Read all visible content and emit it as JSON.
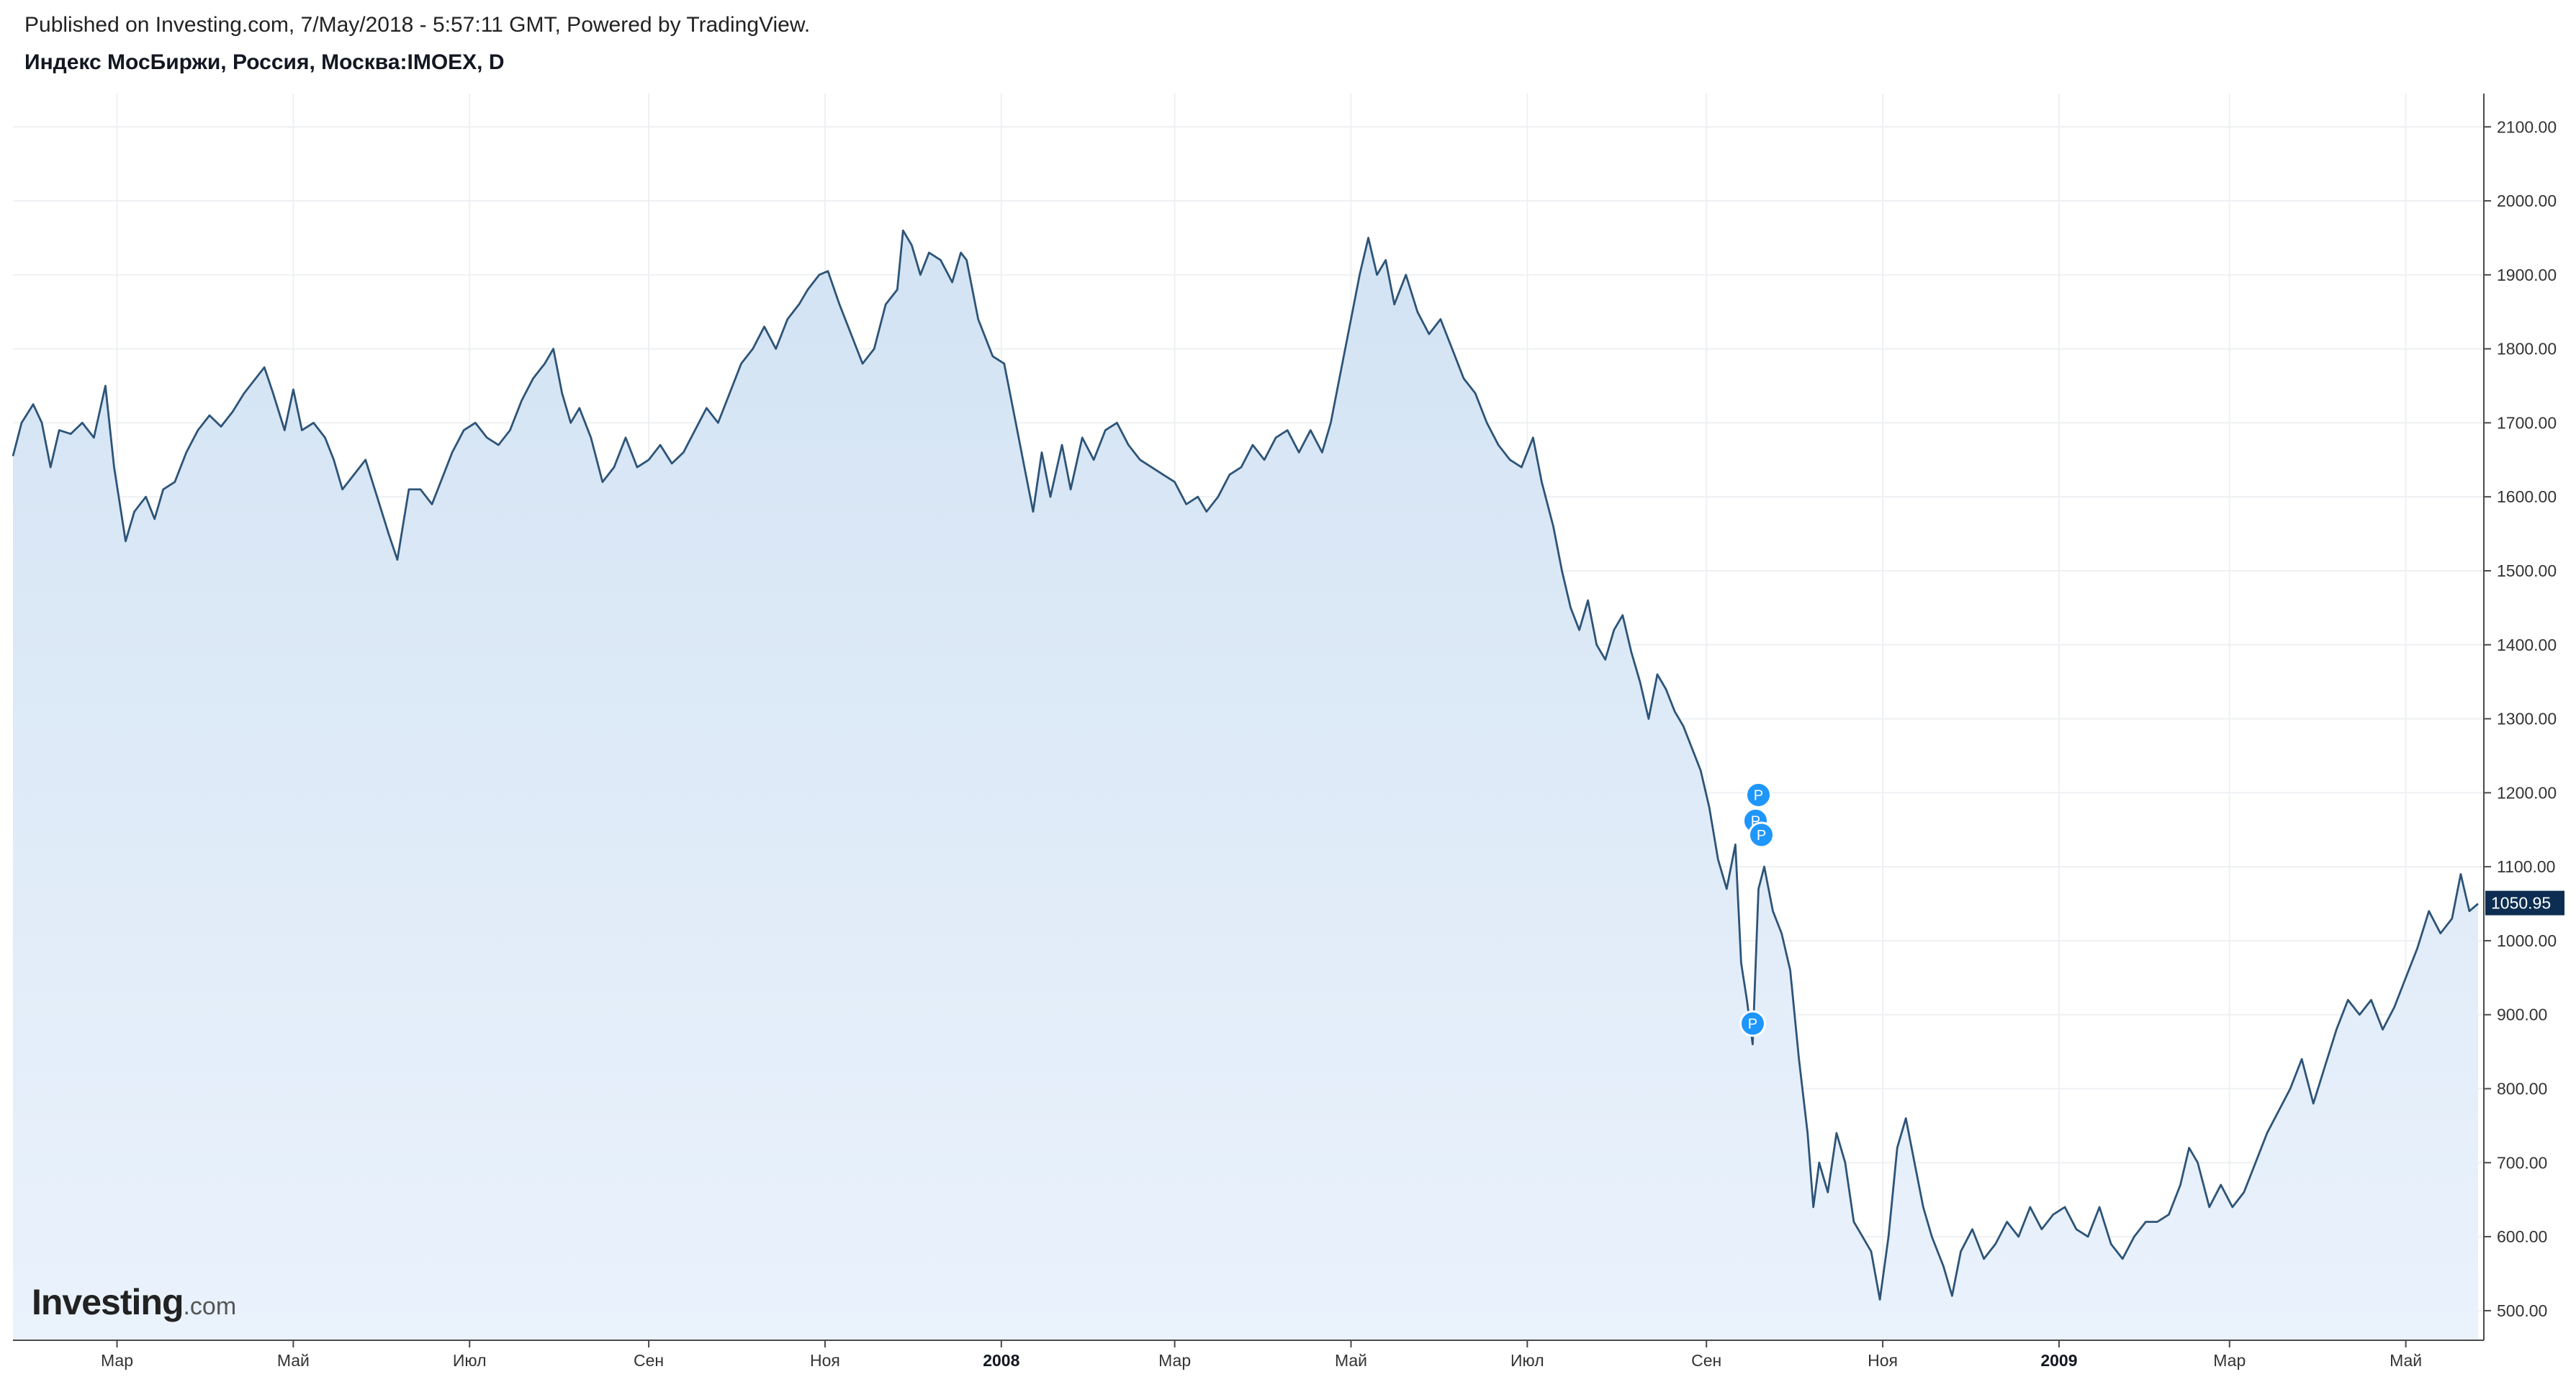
{
  "header": {
    "published": "Published on Investing.com, 7/May/2018 - 5:57:11 GMT, Powered by TradingView.",
    "symbol": "Индекс МосБиржи, Россия, Москва:IMOEX, D"
  },
  "logo": {
    "main": "Investing",
    "suffix": ".com"
  },
  "colors": {
    "line": "#2d5478",
    "area_top": "#d3e3f3",
    "area_bottom": "#eaf2fc",
    "last_price_bg": "#0d2e52",
    "marker": "#1e96fc"
  },
  "chart_data": {
    "type": "area",
    "ylim": [
      460,
      2145
    ],
    "y_ticks": [
      "500.00",
      "600.00",
      "700.00",
      "800.00",
      "900.00",
      "1000.00",
      "1100.00",
      "1200.00",
      "1300.00",
      "1400.00",
      "1500.00",
      "1600.00",
      "1700.00",
      "1800.00",
      "1900.00",
      "2000.00",
      "2100.00"
    ],
    "x_range": [
      "2007-01-24",
      "2009-05-28"
    ],
    "x_ticks": [
      {
        "date": "2007-03-01",
        "label": "Мар",
        "bold": false
      },
      {
        "date": "2007-05-01",
        "label": "Май",
        "bold": false
      },
      {
        "date": "2007-07-01",
        "label": "Июл",
        "bold": false
      },
      {
        "date": "2007-09-01",
        "label": "Сен",
        "bold": false
      },
      {
        "date": "2007-11-01",
        "label": "Ноя",
        "bold": false
      },
      {
        "date": "2008-01-01",
        "label": "2008",
        "bold": true
      },
      {
        "date": "2008-03-01",
        "label": "Мар",
        "bold": false
      },
      {
        "date": "2008-05-01",
        "label": "Май",
        "bold": false
      },
      {
        "date": "2008-07-01",
        "label": "Июл",
        "bold": false
      },
      {
        "date": "2008-09-01",
        "label": "Сен",
        "bold": false
      },
      {
        "date": "2008-11-01",
        "label": "Ноя",
        "bold": false
      },
      {
        "date": "2009-01-01",
        "label": "2009",
        "bold": true
      },
      {
        "date": "2009-03-01",
        "label": "Мар",
        "bold": false
      },
      {
        "date": "2009-05-01",
        "label": "Май",
        "bold": false
      }
    ],
    "grid": true,
    "last_price": "1050.95",
    "markers": [
      {
        "date": "2008-09-19",
        "value": 1197,
        "label": "P"
      },
      {
        "date": "2008-09-18",
        "value": 1162,
        "label": "P"
      },
      {
        "date": "2008-09-20",
        "value": 1143,
        "label": "P"
      },
      {
        "date": "2008-09-17",
        "value": 888,
        "label": "P"
      }
    ],
    "series": [
      {
        "points": [
          [
            "2007-01-24",
            1655
          ],
          [
            "2007-01-27",
            1700
          ],
          [
            "2007-01-31",
            1725
          ],
          [
            "2007-02-03",
            1700
          ],
          [
            "2007-02-06",
            1640
          ],
          [
            "2007-02-09",
            1690
          ],
          [
            "2007-02-13",
            1685
          ],
          [
            "2007-02-17",
            1700
          ],
          [
            "2007-02-21",
            1680
          ],
          [
            "2007-02-25",
            1750
          ],
          [
            "2007-02-28",
            1640
          ],
          [
            "2007-03-02",
            1590
          ],
          [
            "2007-03-04",
            1540
          ],
          [
            "2007-03-07",
            1580
          ],
          [
            "2007-03-11",
            1600
          ],
          [
            "2007-03-14",
            1570
          ],
          [
            "2007-03-17",
            1610
          ],
          [
            "2007-03-21",
            1620
          ],
          [
            "2007-03-25",
            1660
          ],
          [
            "2007-03-29",
            1690
          ],
          [
            "2007-04-02",
            1710
          ],
          [
            "2007-04-06",
            1695
          ],
          [
            "2007-04-10",
            1715
          ],
          [
            "2007-04-14",
            1740
          ],
          [
            "2007-04-18",
            1760
          ],
          [
            "2007-04-21",
            1775
          ],
          [
            "2007-04-24",
            1740
          ],
          [
            "2007-04-28",
            1690
          ],
          [
            "2007-05-01",
            1745
          ],
          [
            "2007-05-04",
            1690
          ],
          [
            "2007-05-08",
            1700
          ],
          [
            "2007-05-12",
            1680
          ],
          [
            "2007-05-15",
            1650
          ],
          [
            "2007-05-18",
            1610
          ],
          [
            "2007-05-22",
            1630
          ],
          [
            "2007-05-26",
            1650
          ],
          [
            "2007-05-30",
            1600
          ],
          [
            "2007-06-03",
            1550
          ],
          [
            "2007-06-06",
            1515
          ],
          [
            "2007-06-10",
            1610
          ],
          [
            "2007-06-14",
            1610
          ],
          [
            "2007-06-18",
            1590
          ],
          [
            "2007-06-21",
            1620
          ],
          [
            "2007-06-25",
            1660
          ],
          [
            "2007-06-29",
            1690
          ],
          [
            "2007-07-03",
            1700
          ],
          [
            "2007-07-07",
            1680
          ],
          [
            "2007-07-11",
            1670
          ],
          [
            "2007-07-15",
            1690
          ],
          [
            "2007-07-19",
            1730
          ],
          [
            "2007-07-23",
            1760
          ],
          [
            "2007-07-27",
            1780
          ],
          [
            "2007-07-30",
            1800
          ],
          [
            "2007-08-02",
            1740
          ],
          [
            "2007-08-05",
            1700
          ],
          [
            "2007-08-08",
            1720
          ],
          [
            "2007-08-12",
            1680
          ],
          [
            "2007-08-16",
            1620
          ],
          [
            "2007-08-20",
            1640
          ],
          [
            "2007-08-24",
            1680
          ],
          [
            "2007-08-28",
            1640
          ],
          [
            "2007-09-01",
            1650
          ],
          [
            "2007-09-05",
            1670
          ],
          [
            "2007-09-09",
            1645
          ],
          [
            "2007-09-13",
            1660
          ],
          [
            "2007-09-17",
            1690
          ],
          [
            "2007-09-21",
            1720
          ],
          [
            "2007-09-25",
            1700
          ],
          [
            "2007-09-29",
            1740
          ],
          [
            "2007-10-03",
            1780
          ],
          [
            "2007-10-07",
            1800
          ],
          [
            "2007-10-11",
            1830
          ],
          [
            "2007-10-15",
            1800
          ],
          [
            "2007-10-19",
            1840
          ],
          [
            "2007-10-23",
            1860
          ],
          [
            "2007-10-26",
            1880
          ],
          [
            "2007-10-30",
            1900
          ],
          [
            "2007-11-02",
            1905
          ],
          [
            "2007-11-06",
            1860
          ],
          [
            "2007-11-10",
            1820
          ],
          [
            "2007-11-14",
            1780
          ],
          [
            "2007-11-18",
            1800
          ],
          [
            "2007-11-22",
            1860
          ],
          [
            "2007-11-26",
            1880
          ],
          [
            "2007-11-28",
            1960
          ],
          [
            "2007-12-01",
            1940
          ],
          [
            "2007-12-04",
            1900
          ],
          [
            "2007-12-07",
            1930
          ],
          [
            "2007-12-11",
            1920
          ],
          [
            "2007-12-15",
            1890
          ],
          [
            "2007-12-18",
            1930
          ],
          [
            "2007-12-20",
            1920
          ],
          [
            "2007-12-24",
            1840
          ],
          [
            "2007-12-29",
            1790
          ],
          [
            "2008-01-02",
            1780
          ],
          [
            "2008-01-06",
            1700
          ],
          [
            "2008-01-09",
            1640
          ],
          [
            "2008-01-12",
            1580
          ],
          [
            "2008-01-15",
            1660
          ],
          [
            "2008-01-18",
            1600
          ],
          [
            "2008-01-22",
            1670
          ],
          [
            "2008-01-25",
            1610
          ],
          [
            "2008-01-29",
            1680
          ],
          [
            "2008-02-02",
            1650
          ],
          [
            "2008-02-06",
            1690
          ],
          [
            "2008-02-10",
            1700
          ],
          [
            "2008-02-14",
            1670
          ],
          [
            "2008-02-18",
            1650
          ],
          [
            "2008-02-22",
            1640
          ],
          [
            "2008-02-26",
            1630
          ],
          [
            "2008-03-01",
            1620
          ],
          [
            "2008-03-05",
            1590
          ],
          [
            "2008-03-09",
            1600
          ],
          [
            "2008-03-12",
            1580
          ],
          [
            "2008-03-16",
            1600
          ],
          [
            "2008-03-20",
            1630
          ],
          [
            "2008-03-24",
            1640
          ],
          [
            "2008-03-28",
            1670
          ],
          [
            "2008-04-01",
            1650
          ],
          [
            "2008-04-05",
            1680
          ],
          [
            "2008-04-09",
            1690
          ],
          [
            "2008-04-13",
            1660
          ],
          [
            "2008-04-17",
            1690
          ],
          [
            "2008-04-21",
            1660
          ],
          [
            "2008-04-24",
            1700
          ],
          [
            "2008-04-27",
            1760
          ],
          [
            "2008-05-01",
            1840
          ],
          [
            "2008-05-04",
            1900
          ],
          [
            "2008-05-07",
            1950
          ],
          [
            "2008-05-10",
            1900
          ],
          [
            "2008-05-13",
            1920
          ],
          [
            "2008-05-16",
            1860
          ],
          [
            "2008-05-20",
            1900
          ],
          [
            "2008-05-24",
            1850
          ],
          [
            "2008-05-28",
            1820
          ],
          [
            "2008-06-01",
            1840
          ],
          [
            "2008-06-05",
            1800
          ],
          [
            "2008-06-09",
            1760
          ],
          [
            "2008-06-13",
            1740
          ],
          [
            "2008-06-17",
            1700
          ],
          [
            "2008-06-21",
            1670
          ],
          [
            "2008-06-25",
            1650
          ],
          [
            "2008-06-29",
            1640
          ],
          [
            "2008-07-03",
            1680
          ],
          [
            "2008-07-06",
            1620
          ],
          [
            "2008-07-10",
            1560
          ],
          [
            "2008-07-13",
            1500
          ],
          [
            "2008-07-16",
            1450
          ],
          [
            "2008-07-19",
            1420
          ],
          [
            "2008-07-22",
            1460
          ],
          [
            "2008-07-25",
            1400
          ],
          [
            "2008-07-28",
            1380
          ],
          [
            "2008-07-31",
            1420
          ],
          [
            "2008-08-03",
            1440
          ],
          [
            "2008-08-06",
            1390
          ],
          [
            "2008-08-09",
            1350
          ],
          [
            "2008-08-12",
            1300
          ],
          [
            "2008-08-15",
            1360
          ],
          [
            "2008-08-18",
            1340
          ],
          [
            "2008-08-21",
            1310
          ],
          [
            "2008-08-24",
            1290
          ],
          [
            "2008-08-27",
            1260
          ],
          [
            "2008-08-30",
            1230
          ],
          [
            "2008-09-02",
            1180
          ],
          [
            "2008-09-05",
            1110
          ],
          [
            "2008-09-08",
            1070
          ],
          [
            "2008-09-11",
            1130
          ],
          [
            "2008-09-13",
            970
          ],
          [
            "2008-09-15",
            920
          ],
          [
            "2008-09-17",
            860
          ],
          [
            "2008-09-19",
            1070
          ],
          [
            "2008-09-21",
            1100
          ],
          [
            "2008-09-24",
            1040
          ],
          [
            "2008-09-27",
            1010
          ],
          [
            "2008-09-30",
            960
          ],
          [
            "2008-10-03",
            840
          ],
          [
            "2008-10-06",
            740
          ],
          [
            "2008-10-08",
            640
          ],
          [
            "2008-10-10",
            700
          ],
          [
            "2008-10-13",
            660
          ],
          [
            "2008-10-16",
            740
          ],
          [
            "2008-10-19",
            700
          ],
          [
            "2008-10-22",
            620
          ],
          [
            "2008-10-25",
            600
          ],
          [
            "2008-10-28",
            580
          ],
          [
            "2008-10-31",
            515
          ],
          [
            "2008-11-03",
            600
          ],
          [
            "2008-11-06",
            720
          ],
          [
            "2008-11-09",
            760
          ],
          [
            "2008-11-12",
            700
          ],
          [
            "2008-11-15",
            640
          ],
          [
            "2008-11-18",
            600
          ],
          [
            "2008-11-22",
            560
          ],
          [
            "2008-11-25",
            520
          ],
          [
            "2008-11-28",
            580
          ],
          [
            "2008-12-02",
            610
          ],
          [
            "2008-12-06",
            570
          ],
          [
            "2008-12-10",
            590
          ],
          [
            "2008-12-14",
            620
          ],
          [
            "2008-12-18",
            600
          ],
          [
            "2008-12-22",
            640
          ],
          [
            "2008-12-26",
            610
          ],
          [
            "2008-12-30",
            630
          ],
          [
            "2009-01-03",
            640
          ],
          [
            "2009-01-07",
            610
          ],
          [
            "2009-01-11",
            600
          ],
          [
            "2009-01-15",
            640
          ],
          [
            "2009-01-19",
            590
          ],
          [
            "2009-01-23",
            570
          ],
          [
            "2009-01-27",
            600
          ],
          [
            "2009-01-31",
            620
          ],
          [
            "2009-02-04",
            620
          ],
          [
            "2009-02-08",
            630
          ],
          [
            "2009-02-12",
            670
          ],
          [
            "2009-02-15",
            720
          ],
          [
            "2009-02-18",
            700
          ],
          [
            "2009-02-22",
            640
          ],
          [
            "2009-02-26",
            670
          ],
          [
            "2009-03-02",
            640
          ],
          [
            "2009-03-06",
            660
          ],
          [
            "2009-03-10",
            700
          ],
          [
            "2009-03-14",
            740
          ],
          [
            "2009-03-18",
            770
          ],
          [
            "2009-03-22",
            800
          ],
          [
            "2009-03-26",
            840
          ],
          [
            "2009-03-30",
            780
          ],
          [
            "2009-04-03",
            830
          ],
          [
            "2009-04-07",
            880
          ],
          [
            "2009-04-11",
            920
          ],
          [
            "2009-04-15",
            900
          ],
          [
            "2009-04-19",
            920
          ],
          [
            "2009-04-23",
            880
          ],
          [
            "2009-04-27",
            910
          ],
          [
            "2009-05-01",
            950
          ],
          [
            "2009-05-05",
            990
          ],
          [
            "2009-05-09",
            1040
          ],
          [
            "2009-05-13",
            1010
          ],
          [
            "2009-05-17",
            1030
          ],
          [
            "2009-05-20",
            1090
          ],
          [
            "2009-05-23",
            1040
          ],
          [
            "2009-05-26",
            1050
          ]
        ]
      }
    ]
  }
}
